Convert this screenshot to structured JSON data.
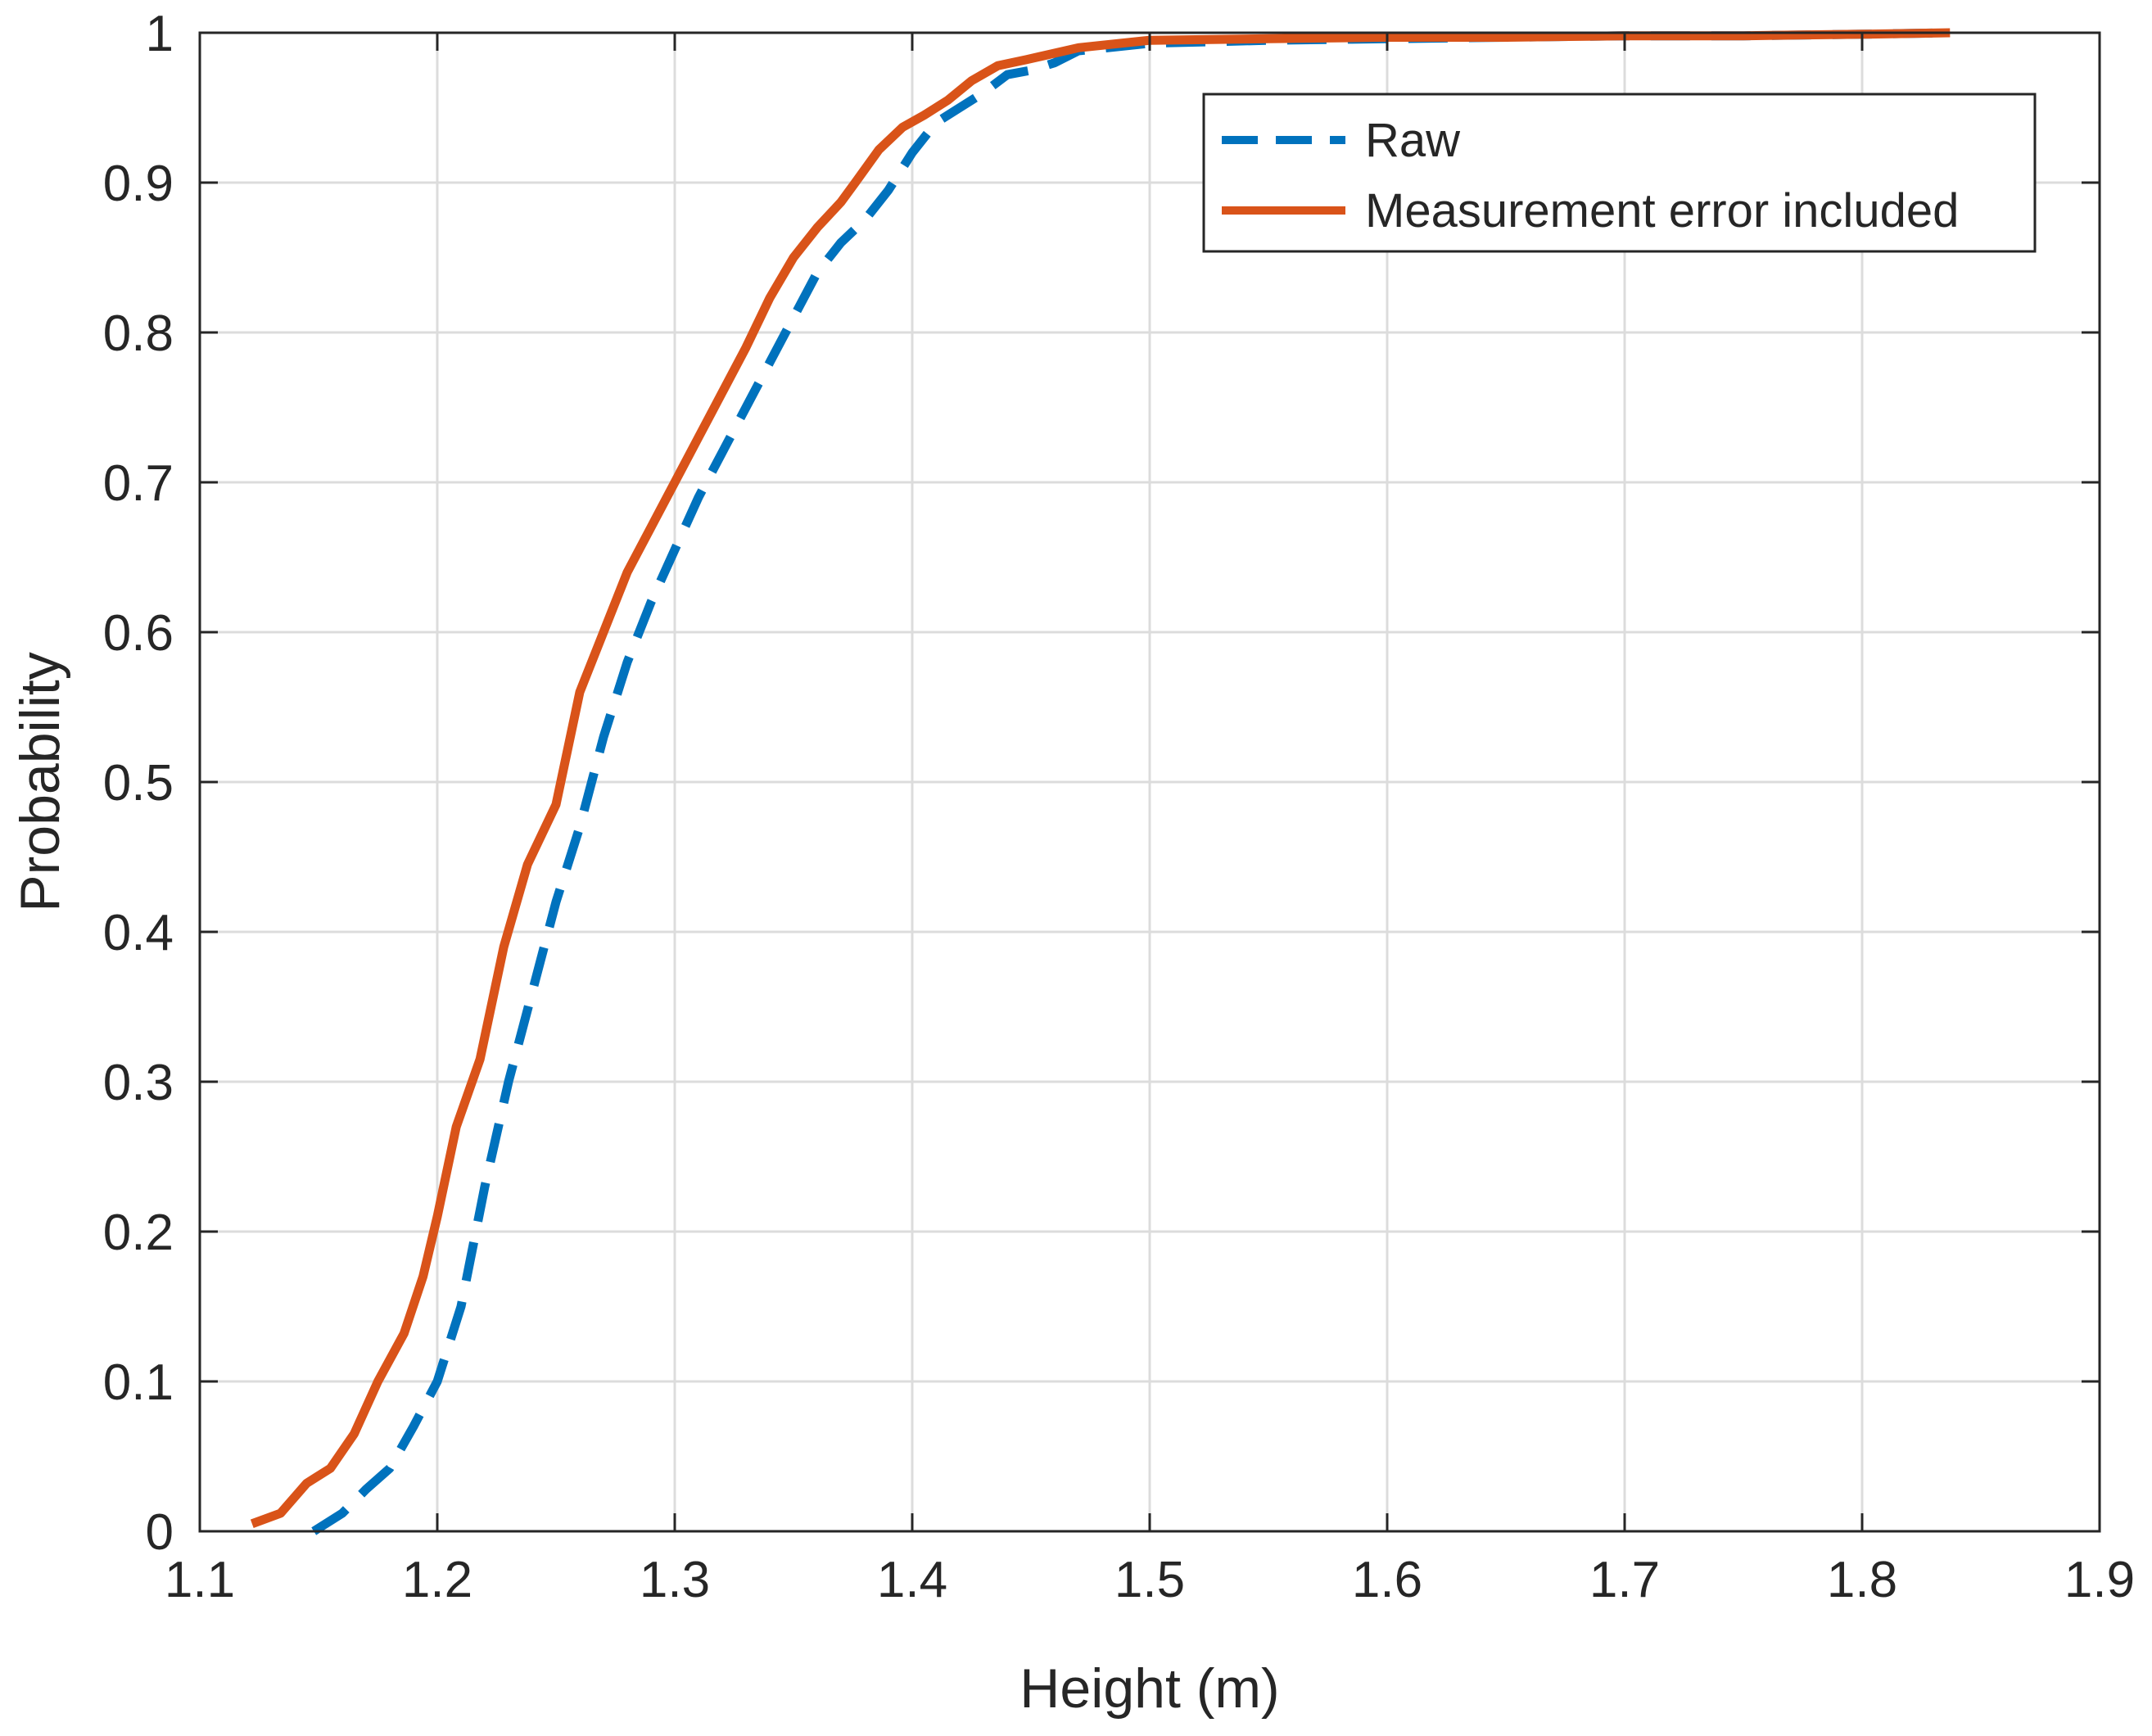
{
  "chart_data": {
    "type": "line",
    "title": "",
    "xlabel": "Height (m)",
    "ylabel": "Probability",
    "xlim": [
      1.1,
      1.9
    ],
    "ylim": [
      0,
      1
    ],
    "grid": true,
    "legend_position": "top-right",
    "x_ticks": [
      1.1,
      1.2,
      1.3,
      1.4,
      1.5,
      1.6,
      1.7,
      1.8,
      1.9
    ],
    "x_tick_labels": [
      "1.1",
      "1.2",
      "1.3",
      "1.4",
      "1.5",
      "1.6",
      "1.7",
      "1.8",
      "1.9"
    ],
    "y_ticks": [
      0,
      0.1,
      0.2,
      0.3,
      0.4,
      0.5,
      0.6,
      0.7,
      0.8,
      0.9,
      1
    ],
    "y_tick_labels": [
      "0",
      "0.1",
      "0.2",
      "0.3",
      "0.4",
      "0.5",
      "0.6",
      "0.7",
      "0.8",
      "0.9",
      "1"
    ],
    "series": [
      {
        "name": "Raw",
        "style": "dashed",
        "color": "#0072BD",
        "x": [
          1.148,
          1.16,
          1.17,
          1.18,
          1.19,
          1.2,
          1.21,
          1.22,
          1.23,
          1.24,
          1.25,
          1.26,
          1.27,
          1.28,
          1.29,
          1.3,
          1.31,
          1.32,
          1.33,
          1.34,
          1.35,
          1.36,
          1.37,
          1.38,
          1.39,
          1.4,
          1.41,
          1.42,
          1.43,
          1.44,
          1.45,
          1.46,
          1.47,
          1.5,
          1.55,
          1.6,
          1.65,
          1.7,
          1.75,
          1.8,
          1.837
        ],
        "y": [
          0.0,
          0.012,
          0.028,
          0.042,
          0.07,
          0.1,
          0.15,
          0.23,
          0.3,
          0.36,
          0.42,
          0.47,
          0.53,
          0.58,
          0.62,
          0.655,
          0.69,
          0.72,
          0.75,
          0.78,
          0.81,
          0.84,
          0.86,
          0.875,
          0.895,
          0.92,
          0.94,
          0.95,
          0.96,
          0.972,
          0.975,
          0.98,
          0.988,
          0.993,
          0.995,
          0.996,
          0.997,
          0.998,
          0.998,
          0.999,
          1.0
        ]
      },
      {
        "name": "Measurement error included",
        "style": "solid",
        "color": "#D95319",
        "x": [
          1.122,
          1.134,
          1.145,
          1.155,
          1.165,
          1.175,
          1.186,
          1.194,
          1.2,
          1.208,
          1.218,
          1.228,
          1.238,
          1.25,
          1.26,
          1.27,
          1.28,
          1.29,
          1.3,
          1.31,
          1.32,
          1.33,
          1.34,
          1.35,
          1.36,
          1.37,
          1.376,
          1.386,
          1.396,
          1.405,
          1.415,
          1.425,
          1.436,
          1.448,
          1.47,
          1.5,
          1.55,
          1.6,
          1.65,
          1.7,
          1.75,
          1.8,
          1.837
        ],
        "y": [
          0.005,
          0.012,
          0.032,
          0.042,
          0.065,
          0.1,
          0.132,
          0.17,
          0.21,
          0.27,
          0.315,
          0.39,
          0.445,
          0.485,
          0.56,
          0.6,
          0.64,
          0.67,
          0.7,
          0.73,
          0.76,
          0.79,
          0.823,
          0.85,
          0.87,
          0.887,
          0.9,
          0.922,
          0.937,
          0.945,
          0.955,
          0.968,
          0.978,
          0.982,
          0.99,
          0.995,
          0.996,
          0.997,
          0.997,
          0.998,
          0.998,
          0.999,
          1.0
        ]
      }
    ]
  }
}
